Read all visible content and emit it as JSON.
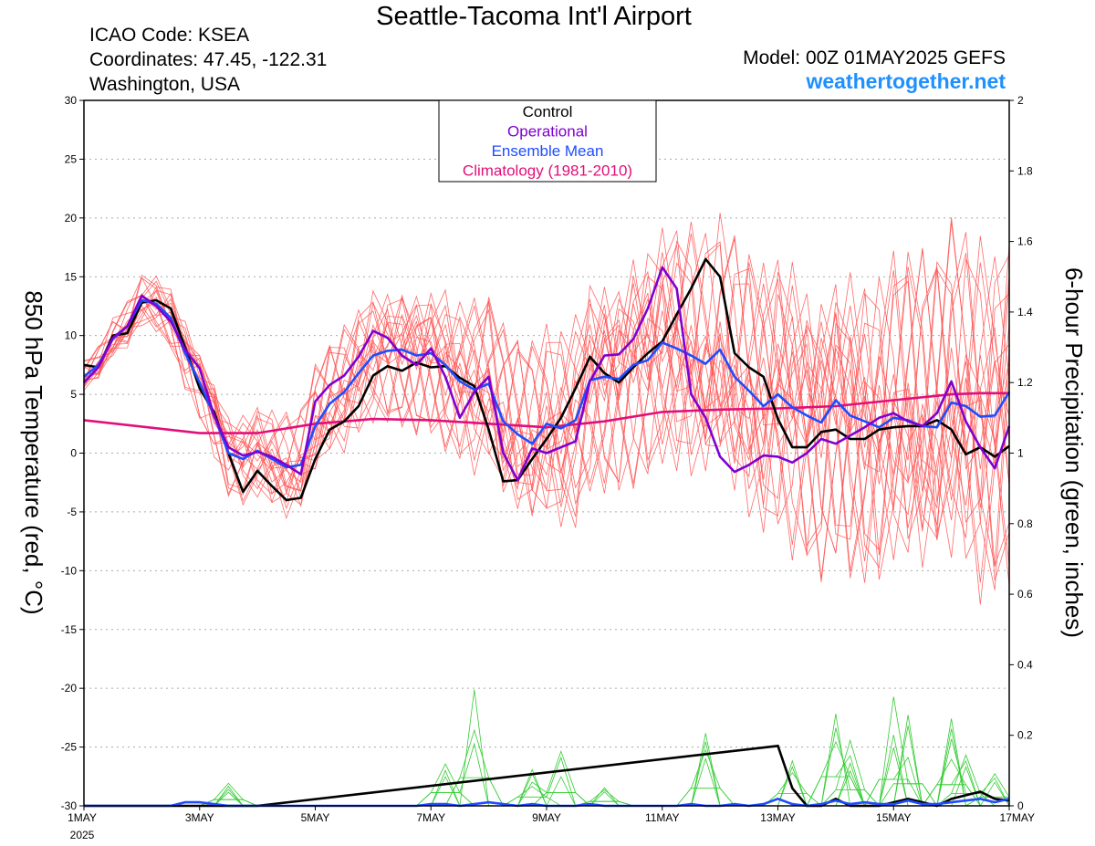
{
  "header": {
    "title": "Seattle-Tacoma Int'l Airport",
    "icao": "ICAO Code: KSEA",
    "coordinates": "Coordinates: 47.45, -122.31",
    "location": "Washington, USA",
    "model": "Model: 00Z 01MAY2025 GEFS",
    "site": "weathertogether.net"
  },
  "colors": {
    "control": "#000000",
    "operational": "#8000d0",
    "ensemble_mean": "#1e4cff",
    "climatology": "#e0107a",
    "members_temp": "#ff5050",
    "members_precip": "#33cc33"
  },
  "chart_data": {
    "type": "line",
    "title": "Seattle-Tacoma Int'l Airport",
    "ylabel_left": "850 hPa Temperature (red, °C)",
    "ylabel_right": "6-hour Precipitation (green, inches)",
    "ylim_left": [
      -30,
      30
    ],
    "yticks_left": [
      "30",
      "25",
      "20",
      "15",
      "10",
      "5",
      "0",
      "-5",
      "-10",
      "-15",
      "-20",
      "-25",
      "-30"
    ],
    "ylim_right": [
      0,
      2
    ],
    "yticks_right": [
      "2",
      "1.8",
      "1.6",
      "1.4",
      "1.2",
      "1",
      "0.8",
      "0.6",
      "0.4",
      "0.2",
      "0"
    ],
    "xlim_days": [
      1,
      17
    ],
    "xticks": [
      {
        "day": 1,
        "label": "1MAY",
        "sub": "2025"
      },
      {
        "day": 3,
        "label": "3MAY",
        "sub": ""
      },
      {
        "day": 5,
        "label": "5MAY",
        "sub": ""
      },
      {
        "day": 7,
        "label": "7MAY",
        "sub": ""
      },
      {
        "day": 9,
        "label": "9MAY",
        "sub": ""
      },
      {
        "day": 11,
        "label": "11MAY",
        "sub": ""
      },
      {
        "day": 13,
        "label": "13MAY",
        "sub": ""
      },
      {
        "day": 15,
        "label": "15MAY",
        "sub": ""
      },
      {
        "day": 17,
        "label": "17MAY",
        "sub": ""
      }
    ],
    "grid": true,
    "legend": {
      "placement": "top-center",
      "entries": [
        "Control",
        "Operational",
        "Ensemble Mean",
        "Climatology (1981-2010)"
      ]
    },
    "series": [
      {
        "name": "Control",
        "axis": "left",
        "x": [
          1,
          1.25,
          1.5,
          1.75,
          2,
          2.25,
          2.5,
          2.75,
          3,
          3.25,
          3.5,
          3.75,
          4,
          4.25,
          4.5,
          4.75,
          5,
          5.25,
          5.5,
          5.75,
          6,
          6.25,
          6.5,
          6.75,
          7,
          7.25,
          7.5,
          7.75,
          8,
          8.25,
          8.5,
          8.75,
          9,
          9.25,
          9.5,
          9.75,
          10,
          10.25,
          10.5,
          10.75,
          11,
          11.25,
          11.5,
          11.75,
          12,
          12.25,
          12.5,
          12.75,
          13,
          13.25,
          13.5,
          13.75,
          14,
          14.25,
          14.5,
          14.75,
          15,
          15.25,
          15.5,
          15.75,
          16,
          16.25,
          16.5,
          16.75,
          17
        ],
        "y": [
          7.5,
          7.3,
          10,
          10.2,
          12.8,
          13,
          12.3,
          9,
          5.5,
          3.5,
          0,
          -3.3,
          -1.5,
          -2.8,
          -4,
          -3.8,
          -0.5,
          2,
          2.7,
          4,
          6.6,
          7.4,
          7,
          7.7,
          7.3,
          7.4,
          6.4,
          5.7,
          2,
          -2.4,
          -2.3,
          -0.5,
          1.2,
          3,
          5.5,
          8.2,
          6.8,
          6,
          7.3,
          8.5,
          9.5,
          11.8,
          14,
          16.5,
          15,
          8.5,
          7.3,
          6.5,
          2.9,
          0.5,
          0.5,
          1.8,
          2,
          1.2,
          1.2,
          2,
          2.2,
          2.3,
          2.3,
          2.8,
          2,
          -0.1,
          0.5,
          -0.3,
          0.6
        ]
      },
      {
        "name": "Operational",
        "axis": "left",
        "x": [
          1,
          1.25,
          1.5,
          1.75,
          2,
          2.25,
          2.5,
          2.75,
          3,
          3.25,
          3.5,
          3.75,
          4,
          4.25,
          4.5,
          4.75,
          5,
          5.25,
          5.5,
          5.75,
          6,
          6.25,
          6.5,
          6.75,
          7,
          7.25,
          7.5,
          7.75,
          8,
          8.25,
          8.5,
          8.75,
          9,
          9.25,
          9.5,
          9.75,
          10,
          10.25,
          10.5,
          10.75,
          11,
          11.25,
          11.5,
          11.75,
          12,
          12.25,
          12.5,
          12.75,
          13,
          13.25,
          13.5,
          13.75,
          14,
          14.25,
          14.5,
          14.75,
          15,
          15.25,
          15.5,
          15.75,
          16,
          16.25,
          16.5,
          16.75,
          17
        ],
        "y": [
          6,
          7.3,
          9.8,
          10.8,
          13.4,
          12.5,
          11.2,
          8.8,
          7.2,
          3.2,
          0.5,
          -0.2,
          0.1,
          -0.3,
          -1,
          -1.8,
          4.4,
          5.8,
          6.6,
          8.2,
          10.4,
          9.8,
          8.3,
          7.5,
          8.9,
          6.5,
          3,
          5.2,
          6.5,
          0,
          -2.3,
          0.4,
          0,
          0.5,
          1,
          6.1,
          8.3,
          8.4,
          9.7,
          12.3,
          15.8,
          14,
          5,
          3,
          -0.3,
          -1.6,
          -1,
          -0.2,
          -0.3,
          -0.8,
          0,
          1.2,
          0.8,
          1.5,
          2.2,
          3,
          3.4,
          2.7,
          2.3,
          3.4,
          6.1,
          2.7,
          0.5,
          -1.3,
          2.3
        ]
      },
      {
        "name": "Ensemble Mean",
        "axis": "left",
        "x": [
          1,
          1.25,
          1.5,
          1.75,
          2,
          2.25,
          2.5,
          2.75,
          3,
          3.25,
          3.5,
          3.75,
          4,
          4.25,
          4.5,
          4.75,
          5,
          5.25,
          5.5,
          5.75,
          6,
          6.25,
          6.5,
          6.75,
          7,
          7.25,
          7.5,
          7.75,
          8,
          8.25,
          8.5,
          8.75,
          9,
          9.25,
          9.5,
          9.75,
          10,
          10.25,
          10.5,
          10.75,
          11,
          11.25,
          11.5,
          11.75,
          12,
          12.25,
          12.5,
          12.75,
          13,
          13.25,
          13.5,
          13.75,
          14,
          14.25,
          14.5,
          14.75,
          15,
          15.25,
          15.5,
          15.75,
          16,
          16.25,
          16.5,
          16.75,
          17
        ],
        "y": [
          6.5,
          7.5,
          9.7,
          10.8,
          13,
          12.7,
          11.5,
          8.5,
          6,
          3.2,
          0,
          -0.5,
          0.2,
          -0.5,
          -1.2,
          -1,
          2.3,
          4.2,
          5.2,
          6.8,
          8.3,
          8.7,
          8.8,
          8.3,
          8.5,
          7.5,
          6.1,
          5.4,
          5.9,
          2.7,
          1.6,
          0.8,
          2.5,
          2.1,
          2.8,
          6.2,
          6.5,
          6.3,
          7.5,
          7.9,
          9.4,
          8.9,
          8.3,
          7.6,
          8.8,
          6.5,
          5.3,
          4,
          5,
          3.9,
          3.2,
          2.6,
          4.5,
          3.2,
          2.7,
          2.2,
          3,
          2.8,
          2.3,
          2.2,
          4.3,
          4,
          3.1,
          3.2,
          5.2
        ]
      },
      {
        "name": "Climatology (1981-2010)",
        "axis": "left",
        "x": [
          1,
          3,
          4,
          5,
          6,
          7,
          8,
          9,
          10,
          11,
          12,
          13,
          14,
          15,
          16,
          16.5,
          17
        ],
        "y": [
          2.8,
          1.7,
          1.7,
          2.5,
          2.9,
          2.8,
          2.5,
          2.2,
          2.7,
          3.5,
          3.7,
          3.8,
          4,
          4.5,
          5,
          5.1,
          5.1
        ]
      }
    ],
    "precip_series": [
      {
        "name": "Control",
        "axis": "right",
        "x": [
          1,
          3,
          4,
          13,
          13.25,
          13.5,
          13.75,
          14,
          14.25,
          14.5,
          14.75,
          15,
          15.25,
          15.5,
          15.75,
          16,
          16.25,
          16.5,
          16.75,
          17
        ],
        "y": [
          0,
          0,
          0,
          0.17,
          0.05,
          0,
          0,
          0.02,
          0,
          0,
          0,
          0.01,
          0.02,
          0.01,
          0,
          0.02,
          0.03,
          0.04,
          0.02,
          0.015
        ]
      },
      {
        "name": "Ensemble Mean",
        "axis": "right",
        "x": [
          1,
          2.25,
          2.5,
          2.75,
          3,
          3.25,
          3.5,
          3.75,
          4,
          4.25,
          4.5,
          5,
          6,
          6.75,
          7,
          7.25,
          7.5,
          7.75,
          8,
          8.25,
          8.5,
          8.75,
          9,
          9.25,
          9.5,
          9.75,
          10,
          10.25,
          10.5,
          10.75,
          11,
          11.25,
          11.5,
          11.75,
          12,
          12.25,
          12.5,
          12.75,
          13,
          13.25,
          13.5,
          13.75,
          14,
          14.25,
          14.5,
          14.75,
          15,
          15.25,
          15.5,
          15.75,
          16,
          16.25,
          16.5,
          16.75,
          17
        ],
        "y": [
          0,
          0,
          0,
          0.01,
          0.01,
          0.005,
          0,
          0,
          0,
          0,
          0,
          0,
          0,
          0,
          0.005,
          0.005,
          0,
          0.005,
          0.01,
          0.005,
          0,
          0.005,
          0,
          0,
          0,
          0.005,
          0,
          0,
          0,
          0,
          0,
          0,
          0.005,
          0,
          0,
          0.005,
          0,
          0.005,
          0.02,
          0.005,
          0,
          0.005,
          0.015,
          0.005,
          0.01,
          0.005,
          0.005,
          0.015,
          0.005,
          0.005,
          0.01,
          0.015,
          0.02,
          0.01,
          0.02
        ]
      }
    ]
  }
}
